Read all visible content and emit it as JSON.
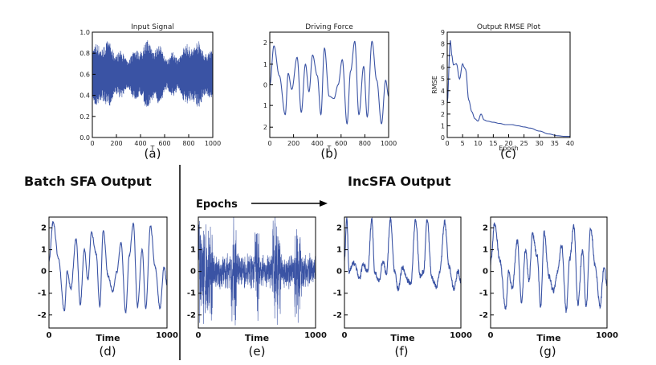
{
  "headings": {
    "batch": "Batch SFA Output",
    "incsfa": "IncSFA Output",
    "epochs": "Epochs"
  },
  "colors": {
    "line": "#3a53a4",
    "axis": "#000000",
    "background": "#ffffff"
  },
  "chart_data": [
    {
      "id": "a",
      "type": "line",
      "title": "Input Signal",
      "caption": "(a)",
      "xlabel": "T",
      "ylabel": "",
      "xlim": [
        0,
        1000
      ],
      "ylim": [
        0.0,
        1.0
      ],
      "xticks": [
        "0",
        "200",
        "400",
        "600",
        "800",
        "1000"
      ],
      "yticks": [
        "0.0",
        "0.2",
        "0.4",
        "0.6",
        "0.8",
        "1.0"
      ],
      "series": [
        {
          "values": "dense oscillation between ~0.15 and ~0.95, envelope mean ~0.6"
        }
      ]
    },
    {
      "id": "b",
      "type": "line",
      "title": "Driving Force",
      "caption": "(b)",
      "xlabel": "T",
      "ylabel": "",
      "xlim": [
        0,
        1000
      ],
      "ylim": [
        -2.3,
        2.3
      ],
      "xticks": [
        "0",
        "200",
        "400",
        "600",
        "800",
        "1000"
      ],
      "yticks": [
        "2",
        "1",
        "0",
        "1",
        "2"
      ],
      "series": [
        {
          "x": [
            0,
            35,
            80,
            130,
            155,
            185,
            230,
            265,
            300,
            330,
            360,
            400,
            430,
            460,
            500,
            540,
            575,
            610,
            650,
            680,
            715,
            750,
            790,
            820,
            860,
            900,
            940,
            975,
            1000
          ],
          "y": [
            0.0,
            1.7,
            0.4,
            -1.3,
            0.5,
            -0.2,
            1.2,
            -1.2,
            0.9,
            -0.3,
            1.3,
            0.4,
            -1.3,
            1.6,
            -0.5,
            -0.6,
            0.0,
            1.1,
            -1.7,
            0.6,
            1.9,
            -1.3,
            0.8,
            -1.4,
            1.9,
            0.2,
            -1.7,
            0.2,
            -0.5
          ]
        }
      ]
    },
    {
      "id": "c",
      "type": "line",
      "title": "Output RMSE Plot",
      "caption": "(c)",
      "xlabel": "Epoch",
      "ylabel": "RMSE",
      "xlim": [
        0,
        40
      ],
      "ylim": [
        0,
        9
      ],
      "xticks": [
        "0",
        "5",
        "10",
        "15",
        "20",
        "25",
        "30",
        "35",
        "40"
      ],
      "yticks": [
        "0",
        "1",
        "2",
        "3",
        "4",
        "5",
        "6",
        "7",
        "8",
        "9"
      ],
      "series": [
        {
          "x": [
            0,
            1,
            1.5,
            2,
            3,
            4,
            5,
            5.5,
            6,
            7,
            8,
            9,
            10,
            11,
            12,
            13,
            15,
            17,
            19,
            21,
            23,
            25,
            27,
            30,
            33,
            36,
            38,
            40
          ],
          "y": [
            2.9,
            8.3,
            7.0,
            6.2,
            6.3,
            5.0,
            6.3,
            6.0,
            5.8,
            3.2,
            2.2,
            1.6,
            1.4,
            2.0,
            1.5,
            1.4,
            1.3,
            1.2,
            1.1,
            1.1,
            1.0,
            0.9,
            0.8,
            0.55,
            0.3,
            0.15,
            0.1,
            0.1
          ]
        }
      ]
    },
    {
      "id": "d",
      "type": "line",
      "title": "",
      "caption": "(d)",
      "xlabel": "Time",
      "ylabel": "",
      "xlim": [
        0,
        1000
      ],
      "ylim": [
        -2.6,
        2.5
      ],
      "xticks": [
        "0",
        "1000"
      ],
      "yticks": [
        "2",
        "1",
        "0",
        "-1",
        "-2"
      ],
      "series": [
        {
          "x": [
            0,
            35,
            80,
            130,
            155,
            185,
            230,
            265,
            300,
            330,
            360,
            400,
            430,
            460,
            500,
            540,
            575,
            610,
            650,
            680,
            715,
            750,
            790,
            820,
            860,
            900,
            940,
            975,
            1000
          ],
          "y": [
            0.5,
            2.3,
            0.6,
            -1.8,
            0.0,
            -0.8,
            1.5,
            -1.5,
            1.0,
            -0.4,
            1.8,
            0.8,
            -1.6,
            1.9,
            -0.2,
            -0.9,
            0.0,
            1.3,
            -1.9,
            0.7,
            2.2,
            -1.6,
            1.0,
            -1.7,
            2.1,
            0.2,
            -1.7,
            0.2,
            -0.6
          ]
        }
      ]
    },
    {
      "id": "e",
      "type": "line",
      "title": "",
      "caption": "(e)",
      "xlabel": "Time",
      "ylabel": "",
      "xlim": [
        0,
        1000
      ],
      "ylim": [
        -2.6,
        2.5
      ],
      "xticks": [
        "0",
        "1000"
      ],
      "yticks": [
        "2",
        "1",
        "0",
        "-1",
        "-2"
      ],
      "series": [
        {
          "values": "high-amplitude noisy oscillation centred near 0, bursts spanning -2.5 to 2.5"
        }
      ]
    },
    {
      "id": "f",
      "type": "line",
      "title": "",
      "caption": "(f)",
      "xlabel": "Time",
      "ylabel": "",
      "xlim": [
        0,
        1000
      ],
      "ylim": [
        -2.6,
        2.5
      ],
      "xticks": [
        "0",
        "1000"
      ],
      "yticks": [
        "2",
        "1",
        "0",
        "-1",
        "-2"
      ],
      "series": [
        {
          "x": [
            0,
            20,
            40,
            80,
            130,
            160,
            200,
            235,
            260,
            300,
            330,
            360,
            395,
            430,
            460,
            500,
            540,
            570,
            610,
            650,
            680,
            710,
            750,
            790,
            820,
            860,
            900,
            940,
            975,
            1000
          ],
          "y": [
            0.6,
            2.4,
            0.0,
            0.4,
            -0.3,
            0.3,
            0.0,
            2.4,
            -0.1,
            -0.4,
            0.5,
            -0.1,
            2.4,
            0.0,
            -0.8,
            0.2,
            -0.4,
            -0.6,
            2.4,
            -0.2,
            0.0,
            2.4,
            -0.3,
            -0.7,
            0.0,
            2.3,
            0.2,
            -0.8,
            0.0,
            -0.5
          ]
        }
      ]
    },
    {
      "id": "g",
      "type": "line",
      "title": "",
      "caption": "(g)",
      "xlabel": "Time",
      "ylabel": "",
      "xlim": [
        0,
        1000
      ],
      "ylim": [
        -2.6,
        2.5
      ],
      "xticks": [
        "0",
        "1000"
      ],
      "yticks": [
        "2",
        "1",
        "0",
        "-1",
        "-2"
      ],
      "series": [
        {
          "x": [
            0,
            35,
            80,
            130,
            155,
            185,
            230,
            265,
            300,
            330,
            360,
            400,
            430,
            460,
            500,
            540,
            575,
            610,
            650,
            680,
            715,
            750,
            790,
            820,
            860,
            900,
            940,
            975,
            1000
          ],
          "y": [
            0.4,
            2.2,
            0.5,
            -1.7,
            0.0,
            -0.8,
            1.4,
            -1.4,
            1.0,
            -0.4,
            1.7,
            0.7,
            -1.6,
            1.8,
            -0.2,
            -0.9,
            0.0,
            1.2,
            -1.8,
            0.6,
            2.1,
            -1.5,
            1.0,
            -1.6,
            2.0,
            0.2,
            -1.6,
            0.2,
            -0.6
          ]
        }
      ]
    }
  ]
}
